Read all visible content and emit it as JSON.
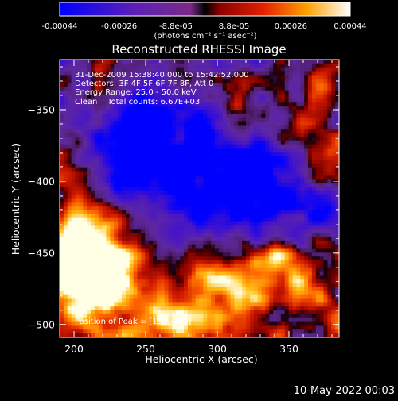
{
  "chart_data": {
    "type": "heatmap",
    "title": "Reconstructed RHESSI Image",
    "xlabel": "Heliocentric X (arcsec)",
    "ylabel": "Heliocentric Y (arcsec)",
    "xlim": [
      190,
      385
    ],
    "ylim": [
      -509,
      -315
    ],
    "x_ticks": [
      200,
      250,
      300,
      350
    ],
    "y_ticks": [
      -350,
      -400,
      -450,
      -500
    ],
    "x_tick_labels": [
      "200",
      "250",
      "300",
      "350"
    ],
    "y_tick_labels": [
      "−350",
      "−400",
      "−450",
      "−500"
    ],
    "colorbar": {
      "range": [
        -0.00044,
        0.00044
      ],
      "tick_values": [
        -0.00044,
        -0.00026,
        -8.8e-05,
        8.8e-05,
        0.00026,
        0.00044
      ],
      "tick_labels": [
        "-0.00044",
        "-0.00026",
        "-8.8e-05",
        "8.8e-05",
        "0.00026",
        "0.00044"
      ],
      "label": "(photons cm⁻² s⁻¹ asec⁻²)",
      "colormap": "blue-purple-red-orange-yellow-white"
    },
    "info_lines": [
      "31-Dec-2009 15:38:40.000 to 15:42:52.000",
      "Detectors: 3F 4F 5F 6F 7F 8F, Att 0",
      "Energy Range: 25.0 - 50.0 keV",
      "Clean    Total counts: 6.67E+03"
    ],
    "peak_label": "Position of Peak = [198,-463]",
    "peak": [
      198,
      -463
    ],
    "grid": false
  },
  "footer": {
    "date": "10-May-2022 00:03"
  }
}
